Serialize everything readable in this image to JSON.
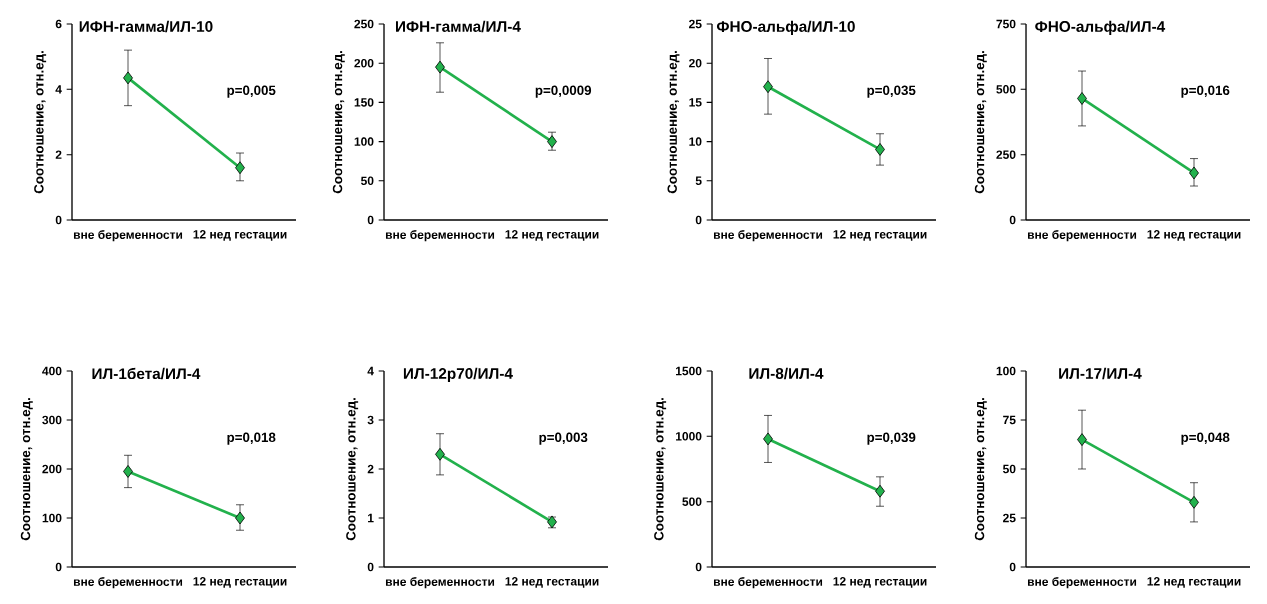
{
  "chart_data": [
    {
      "type": "line",
      "title": "ИФН-гамма/ИЛ-10",
      "ylabel": "Соотношение, отн.ед.",
      "categories": [
        "вне беременности",
        "12 нед гестации"
      ],
      "values": [
        4.35,
        1.6
      ],
      "errors": [
        [
          3.5,
          5.2
        ],
        [
          1.2,
          2.05
        ]
      ],
      "color": "#22b14c",
      "marker": "diamond",
      "ylim": [
        0,
        6
      ],
      "yticks": [
        0,
        2,
        4,
        6
      ],
      "annotations": [
        "p=0,005"
      ]
    },
    {
      "type": "line",
      "title": "ИФН-гамма/ИЛ-4",
      "ylabel": "Соотношение, отн.ед.",
      "categories": [
        "вне беременности",
        "12 нед гестации"
      ],
      "values": [
        195,
        100
      ],
      "errors": [
        [
          163,
          226
        ],
        [
          89,
          112
        ]
      ],
      "color": "#22b14c",
      "marker": "diamond",
      "ylim": [
        0,
        250
      ],
      "yticks": [
        0,
        50,
        100,
        150,
        200,
        250
      ],
      "annotations": [
        "p=0,0009"
      ]
    },
    {
      "type": "line",
      "title": "ФНО-альфа/ИЛ-10",
      "ylabel": "Соотношение, отн.ед.",
      "categories": [
        "вне беременности",
        "12 нед гестации"
      ],
      "values": [
        17,
        9
      ],
      "errors": [
        [
          13.5,
          20.6
        ],
        [
          7,
          11
        ]
      ],
      "color": "#22b14c",
      "marker": "diamond",
      "ylim": [
        0,
        25
      ],
      "yticks": [
        0,
        5,
        10,
        15,
        20,
        25
      ],
      "annotations": [
        "p=0,035"
      ]
    },
    {
      "type": "line",
      "title": "ФНО-альфа/ИЛ-4",
      "ylabel": "Соотношение, отн.ед.",
      "categories": [
        "вне беременности",
        "12 нед гестации"
      ],
      "values": [
        465,
        180
      ],
      "errors": [
        [
          360,
          570
        ],
        [
          130,
          235
        ]
      ],
      "color": "#22b14c",
      "marker": "diamond",
      "ylim": [
        0,
        750
      ],
      "yticks": [
        0,
        250,
        500,
        750
      ],
      "annotations": [
        "p=0,016"
      ]
    },
    {
      "type": "line",
      "title": "ИЛ-1бета/ИЛ-4",
      "ylabel": "Соотношение, отн.ед.",
      "categories": [
        "вне беременности",
        "12 нед гестации"
      ],
      "values": [
        195,
        100
      ],
      "errors": [
        [
          162,
          228
        ],
        [
          75,
          127
        ]
      ],
      "color": "#22b14c",
      "marker": "diamond",
      "ylim": [
        0,
        400
      ],
      "yticks": [
        0,
        100,
        200,
        300,
        400
      ],
      "annotations": [
        "p=0,018"
      ]
    },
    {
      "type": "line",
      "title": "ИЛ-12р70/ИЛ-4",
      "ylabel": "Соотношение, отн.ед.",
      "categories": [
        "вне беременности",
        "12 нед гестации"
      ],
      "values": [
        2.3,
        0.92
      ],
      "errors": [
        [
          1.88,
          2.72
        ],
        [
          0.8,
          1.02
        ]
      ],
      "color": "#22b14c",
      "marker": "diamond",
      "ylim": [
        0,
        4
      ],
      "yticks": [
        0,
        1,
        2,
        3,
        4
      ],
      "annotations": [
        "p=0,003"
      ]
    },
    {
      "type": "line",
      "title": "ИЛ-8/ИЛ-4",
      "ylabel": "Соотношение, отн.ед.",
      "categories": [
        "вне беременности",
        "12 нед гестации"
      ],
      "values": [
        980,
        580
      ],
      "errors": [
        [
          800,
          1160
        ],
        [
          465,
          690
        ]
      ],
      "color": "#22b14c",
      "marker": "diamond",
      "ylim": [
        0,
        1500
      ],
      "yticks": [
        0,
        500,
        1000,
        1500
      ],
      "annotations": [
        "p=0,039"
      ]
    },
    {
      "type": "line",
      "title": "ИЛ-17/ИЛ-4",
      "ylabel": "Соотношение, отн.ед.",
      "categories": [
        "вне беременности",
        "12 нед гестации"
      ],
      "values": [
        65,
        33
      ],
      "errors": [
        [
          50,
          80
        ],
        [
          23,
          43
        ]
      ],
      "color": "#22b14c",
      "marker": "diamond",
      "ylim": [
        0,
        100
      ],
      "yticks": [
        0,
        25,
        50,
        75,
        100
      ],
      "annotations": [
        "p=0,048"
      ]
    }
  ]
}
